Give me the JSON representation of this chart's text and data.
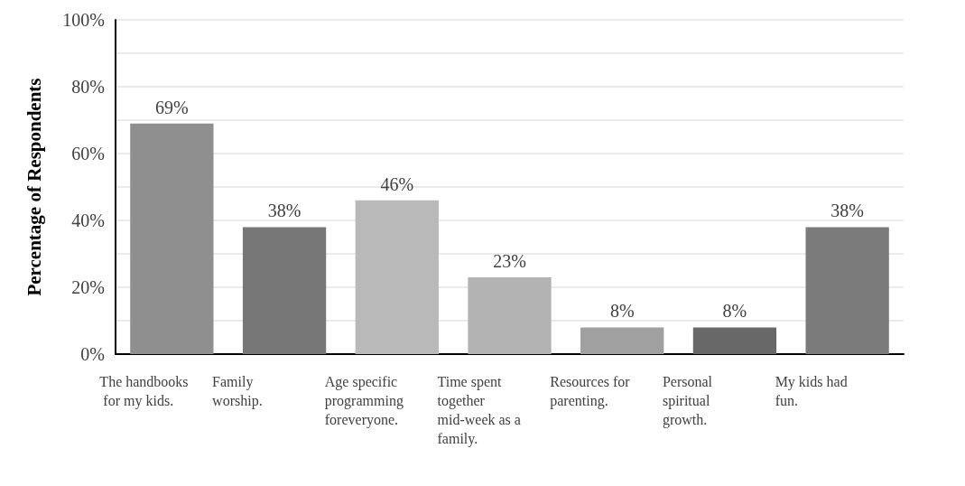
{
  "chart_data": {
    "type": "bar",
    "ylabel": "Percentage of Respondents",
    "categories": [
      "The handbooks for my kids.",
      "Family worship.",
      "Age specific programming foreveryone.",
      "Time spent together mid-week as a family.",
      "Resources for parenting.",
      "Personal spiritual growth.",
      "My kids had fun."
    ],
    "values": [
      69,
      38,
      46,
      23,
      8,
      8,
      38
    ],
    "colors": [
      "#8f8f8f",
      "#777777",
      "#b9b9b9",
      "#b3b3b3",
      "#a0a0a0",
      "#686868",
      "#7b7b7b"
    ],
    "value_labels": [
      "69%",
      "38%",
      "46%",
      "23%",
      "8%",
      "8%",
      "38%"
    ],
    "ylim": [
      0,
      100
    ],
    "yticks": [
      {
        "value": 0,
        "label": "0%"
      },
      {
        "value": 10,
        "label": null
      },
      {
        "value": 20,
        "label": "20%"
      },
      {
        "value": 30,
        "label": null
      },
      {
        "value": 40,
        "label": "40%"
      },
      {
        "value": 50,
        "label": null
      },
      {
        "value": 60,
        "label": "60%"
      },
      {
        "value": 70,
        "label": null
      },
      {
        "value": 80,
        "label": "80%"
      },
      {
        "value": 90,
        "label": null
      },
      {
        "value": 100,
        "label": "100%"
      }
    ],
    "grid": "y"
  }
}
